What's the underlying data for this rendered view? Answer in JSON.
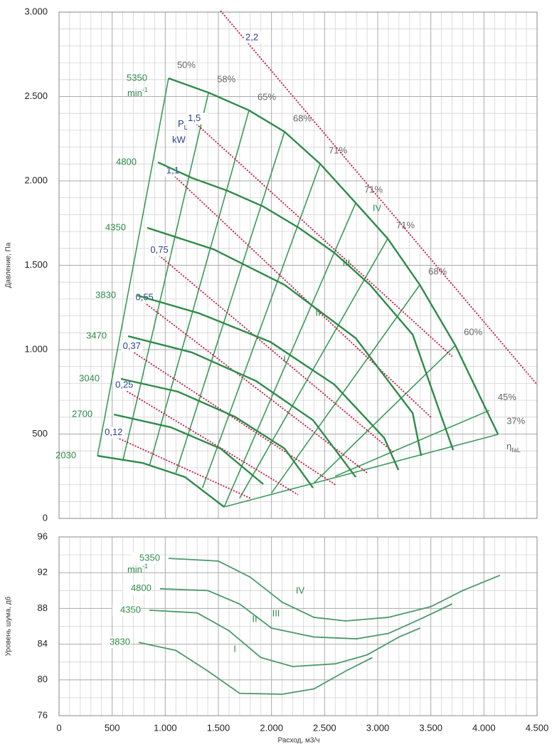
{
  "chart_data": [
    {
      "type": "line",
      "ylabel": "Давление, Па",
      "xlim": [
        0,
        4500
      ],
      "xticks": [
        0,
        500,
        1000,
        1500,
        2000,
        2500,
        3000,
        3500,
        4000,
        4500
      ],
      "ylim": [
        0,
        3000
      ],
      "yticks": [
        0,
        500,
        {
          "value": 1000,
          "label": "1.000"
        },
        {
          "value": 1500,
          "label": "1.500"
        },
        {
          "value": 2000,
          "label": "2.000"
        },
        {
          "value": 2500,
          "label": "2.500"
        },
        {
          "value": 3000,
          "label": "3.000"
        }
      ],
      "grid": true,
      "series": [
        {
          "name": "5350",
          "color": "#2e8b4a",
          "x": [
            1031,
            1407,
            1788,
            2123,
            2458,
            2793,
            3094,
            3396,
            3731,
            4133
          ],
          "values": [
            2608,
            2523,
            2418,
            2291,
            2101,
            1869,
            1658,
            1384,
            1025,
            498
          ]
        },
        {
          "name": "4800",
          "color": "#2e8b4a",
          "x": [
            931,
            1253,
            1588,
            1923,
            2257,
            2592,
            2927,
            3329,
            3710
          ],
          "values": [
            2110,
            2017,
            1941,
            1848,
            1722,
            1574,
            1384,
            1089,
            405
          ]
        },
        {
          "name": "4350",
          "color": "#2e8b4a",
          "x": [
            830,
            1453,
            2123,
            2793,
            3329,
            3409
          ],
          "values": [
            1722,
            1595,
            1384,
            1068,
            624,
            371
          ]
        },
        {
          "name": "3830",
          "color": "#2e8b4a",
          "x": [
            737,
            1320,
            1989,
            2592,
            3061,
            3195
          ],
          "values": [
            1321,
            1215,
            1046,
            793,
            477,
            287
          ]
        },
        {
          "name": "3470",
          "color": "#2e8b4a",
          "x": [
            650,
            1253,
            1855,
            2391,
            2793
          ],
          "values": [
            1080,
            983,
            814,
            582,
            245
          ]
        },
        {
          "name": "3040",
          "color": "#2e8b4a",
          "x": [
            583,
            1119,
            1654,
            2123,
            2391
          ],
          "values": [
            827,
            751,
            603,
            414,
            181
          ]
        },
        {
          "name": "2700",
          "color": "#2e8b4a",
          "x": [
            516,
            1052,
            1520,
            1922
          ],
          "values": [
            616,
            540,
            414,
            203
          ]
        },
        {
          "name": "2030",
          "color": "#2e8b4a",
          "x": [
            362,
            784,
            1186,
            1554
          ],
          "values": [
            371,
            329,
            245,
            68
          ]
        }
      ],
      "efficiency_color": "#3a9a5a",
      "efficiency_lines": [
        {
          "name": "50%",
          "x": [
            362,
            1031
          ],
          "values": [
            371,
            2608
          ]
        },
        {
          "name": "58%",
          "x": [
            600,
            1407
          ],
          "values": [
            340,
            2523
          ]
        },
        {
          "name": "65%",
          "x": [
            850,
            1788
          ],
          "values": [
            310,
            2418
          ]
        },
        {
          "name": "68%",
          "x": [
            1100,
            2123
          ],
          "values": [
            270,
            2291
          ]
        },
        {
          "name": "71%",
          "x": [
            1350,
            2458
          ],
          "values": [
            180,
            2101
          ]
        },
        {
          "name": "71%",
          "x": [
            1554,
            2793
          ],
          "values": [
            68,
            1869
          ]
        },
        {
          "name": "71%",
          "x": [
            1700,
            3094
          ],
          "values": [
            120,
            1658
          ]
        },
        {
          "name": "68%",
          "x": [
            2000,
            3396
          ],
          "values": [
            150,
            1384
          ]
        },
        {
          "name": "60%",
          "x": [
            2400,
            3731
          ],
          "values": [
            210,
            1025
          ]
        },
        {
          "name": "45%",
          "x": [
            2600,
            4050
          ],
          "values": [
            250,
            640
          ]
        },
        {
          "name": "37%",
          "x": [
            1554,
            4133
          ],
          "values": [
            68,
            498
          ]
        }
      ],
      "power_color": "#c0143c",
      "power_lines": [
        {
          "name": "2,2",
          "x": [
            1520,
            4500
          ],
          "values": [
            3008,
            793
          ]
        },
        {
          "name": "1,5",
          "x": [
            1253,
            3700
          ],
          "values": [
            2360,
            960
          ]
        },
        {
          "name": "1,1",
          "x": [
            1050,
            3500
          ],
          "values": [
            2050,
            600
          ]
        },
        {
          "name": "0,75",
          "x": [
            900,
            3150
          ],
          "values": [
            1580,
            390
          ]
        },
        {
          "name": "0,55",
          "x": [
            760,
            2900
          ],
          "values": [
            1300,
            270
          ]
        },
        {
          "name": "0,37",
          "x": [
            640,
            2600
          ],
          "values": [
            1010,
            200
          ]
        },
        {
          "name": "0,25",
          "x": [
            570,
            2250
          ],
          "values": [
            780,
            140
          ]
        },
        {
          "name": "0,12",
          "x": [
            470,
            1800
          ],
          "values": [
            500,
            120
          ]
        }
      ],
      "speed_unit": {
        "text": "min",
        "sup": "-1"
      },
      "power_label": {
        "symbol": "P",
        "sub": "L",
        "unit": "kW"
      },
      "efficiency_symbol": {
        "symbol": "η",
        "sub": "faL"
      },
      "zones": [
        "I",
        "II",
        "III",
        "IV"
      ]
    },
    {
      "type": "line",
      "xlabel": "Расход, м3/ч",
      "ylabel": "Уровень шума, дб",
      "xlim": [
        0,
        4500
      ],
      "xticks": [
        0,
        500,
        {
          "value": 1000,
          "label": "1.000"
        },
        {
          "value": 1500,
          "label": "1.500"
        },
        {
          "value": 2000,
          "label": "2.000"
        },
        {
          "value": 2500,
          "label": "2.500"
        },
        {
          "value": 3000,
          "label": "3.000"
        },
        {
          "value": 3500,
          "label": "3.500"
        },
        {
          "value": 4000,
          "label": "4.000"
        },
        {
          "value": 4500,
          "label": "4.500"
        }
      ],
      "ylim": [
        76,
        96
      ],
      "yticks": [
        76,
        80,
        84,
        88,
        92,
        96
      ],
      "grid": true,
      "series": [
        {
          "name": "5350",
          "label": "IV",
          "color": "#4a9a6a",
          "x": [
            1031,
            1500,
            1800,
            2100,
            2400,
            2700,
            3100,
            3500,
            3800,
            4150
          ],
          "values": [
            93.6,
            93.3,
            91.5,
            88.7,
            87.0,
            86.6,
            87.0,
            88.2,
            90,
            91.7
          ]
        },
        {
          "name": "4800",
          "label": "III",
          "color": "#4a9a6a",
          "x": [
            950,
            1400,
            1700,
            2000,
            2400,
            2800,
            3100,
            3400,
            3700
          ],
          "values": [
            90.2,
            90,
            88.5,
            85.8,
            84.8,
            84.6,
            85.2,
            86.8,
            88.5
          ]
        },
        {
          "name": "4350",
          "label": "II",
          "color": "#4a9a6a",
          "x": [
            850,
            1300,
            1600,
            1900,
            2200,
            2600,
            2900,
            3200,
            3400
          ],
          "values": [
            87.8,
            87.5,
            85.5,
            82.5,
            81.5,
            81.8,
            82.8,
            84.8,
            85.8
          ]
        },
        {
          "name": "3830",
          "label": "I",
          "color": "#4a9a6a",
          "x": [
            750,
            1100,
            1400,
            1700,
            2100,
            2400,
            2700,
            2950
          ],
          "values": [
            84.2,
            83.3,
            81,
            78.5,
            78.4,
            79,
            81,
            82.5
          ]
        }
      ],
      "speed_unit": {
        "text": "min",
        "sup": "-1"
      }
    }
  ]
}
